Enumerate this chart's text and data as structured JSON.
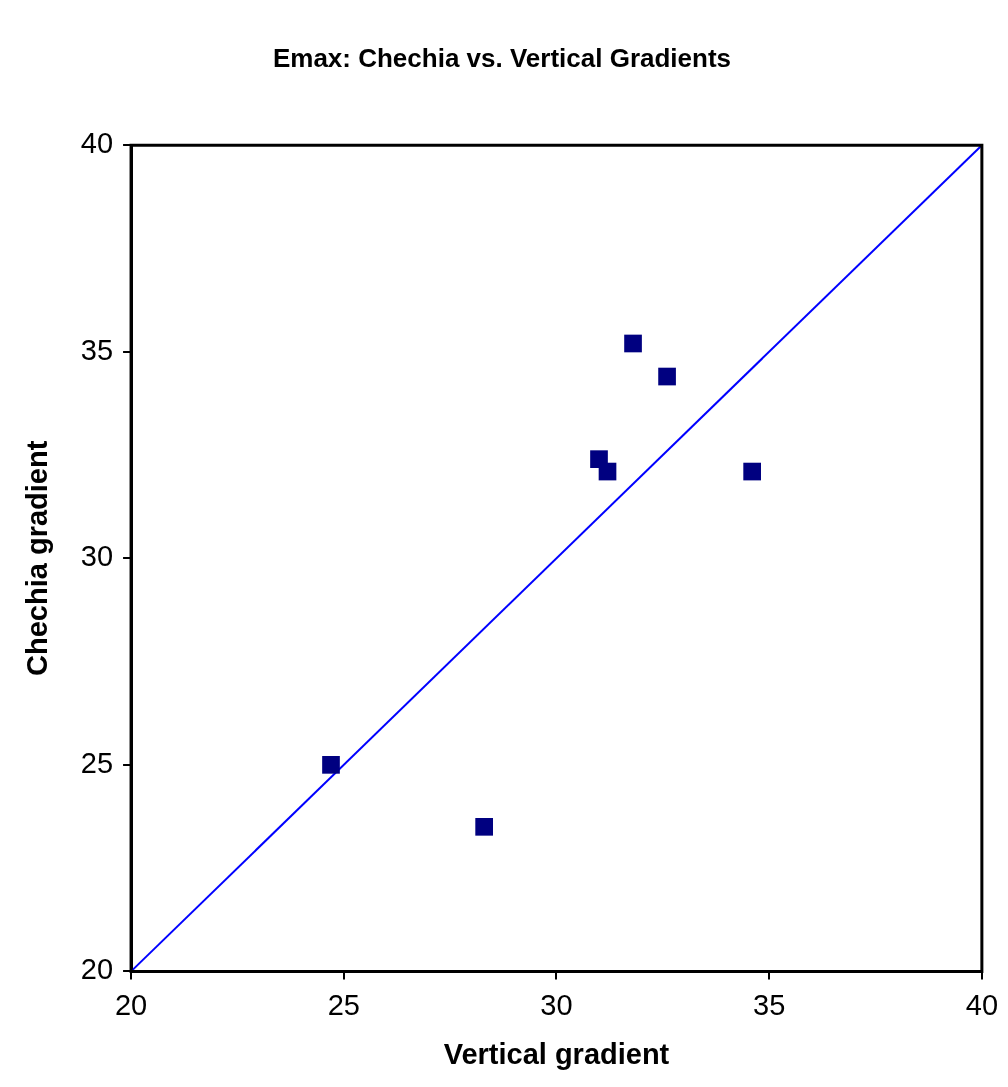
{
  "chart_data": {
    "type": "scatter",
    "title": "Emax: Chechia vs. Vertical Gradients",
    "xlabel": "Vertical gradient",
    "ylabel": "Chechia gradient",
    "series": [
      {
        "color": "#000080",
        "marker": "square",
        "x": [
          24.7,
          28.3,
          31.0,
          31.2,
          31.8,
          32.6,
          34.6
        ],
        "values": [
          25.0,
          23.5,
          32.4,
          32.1,
          35.2,
          34.4,
          32.1
        ]
      },
      {
        "type": "line",
        "color": "#0000ff",
        "marker": "none",
        "line_style": "solid",
        "x": [
          20,
          40
        ],
        "values": [
          20,
          40
        ]
      }
    ],
    "xlim": [
      20,
      40
    ],
    "ylim": [
      20,
      40
    ],
    "xticks": [
      20,
      25,
      30,
      35,
      40
    ],
    "yticks": [
      20,
      25,
      30,
      35,
      40
    ],
    "grid": false,
    "legend": false
  }
}
